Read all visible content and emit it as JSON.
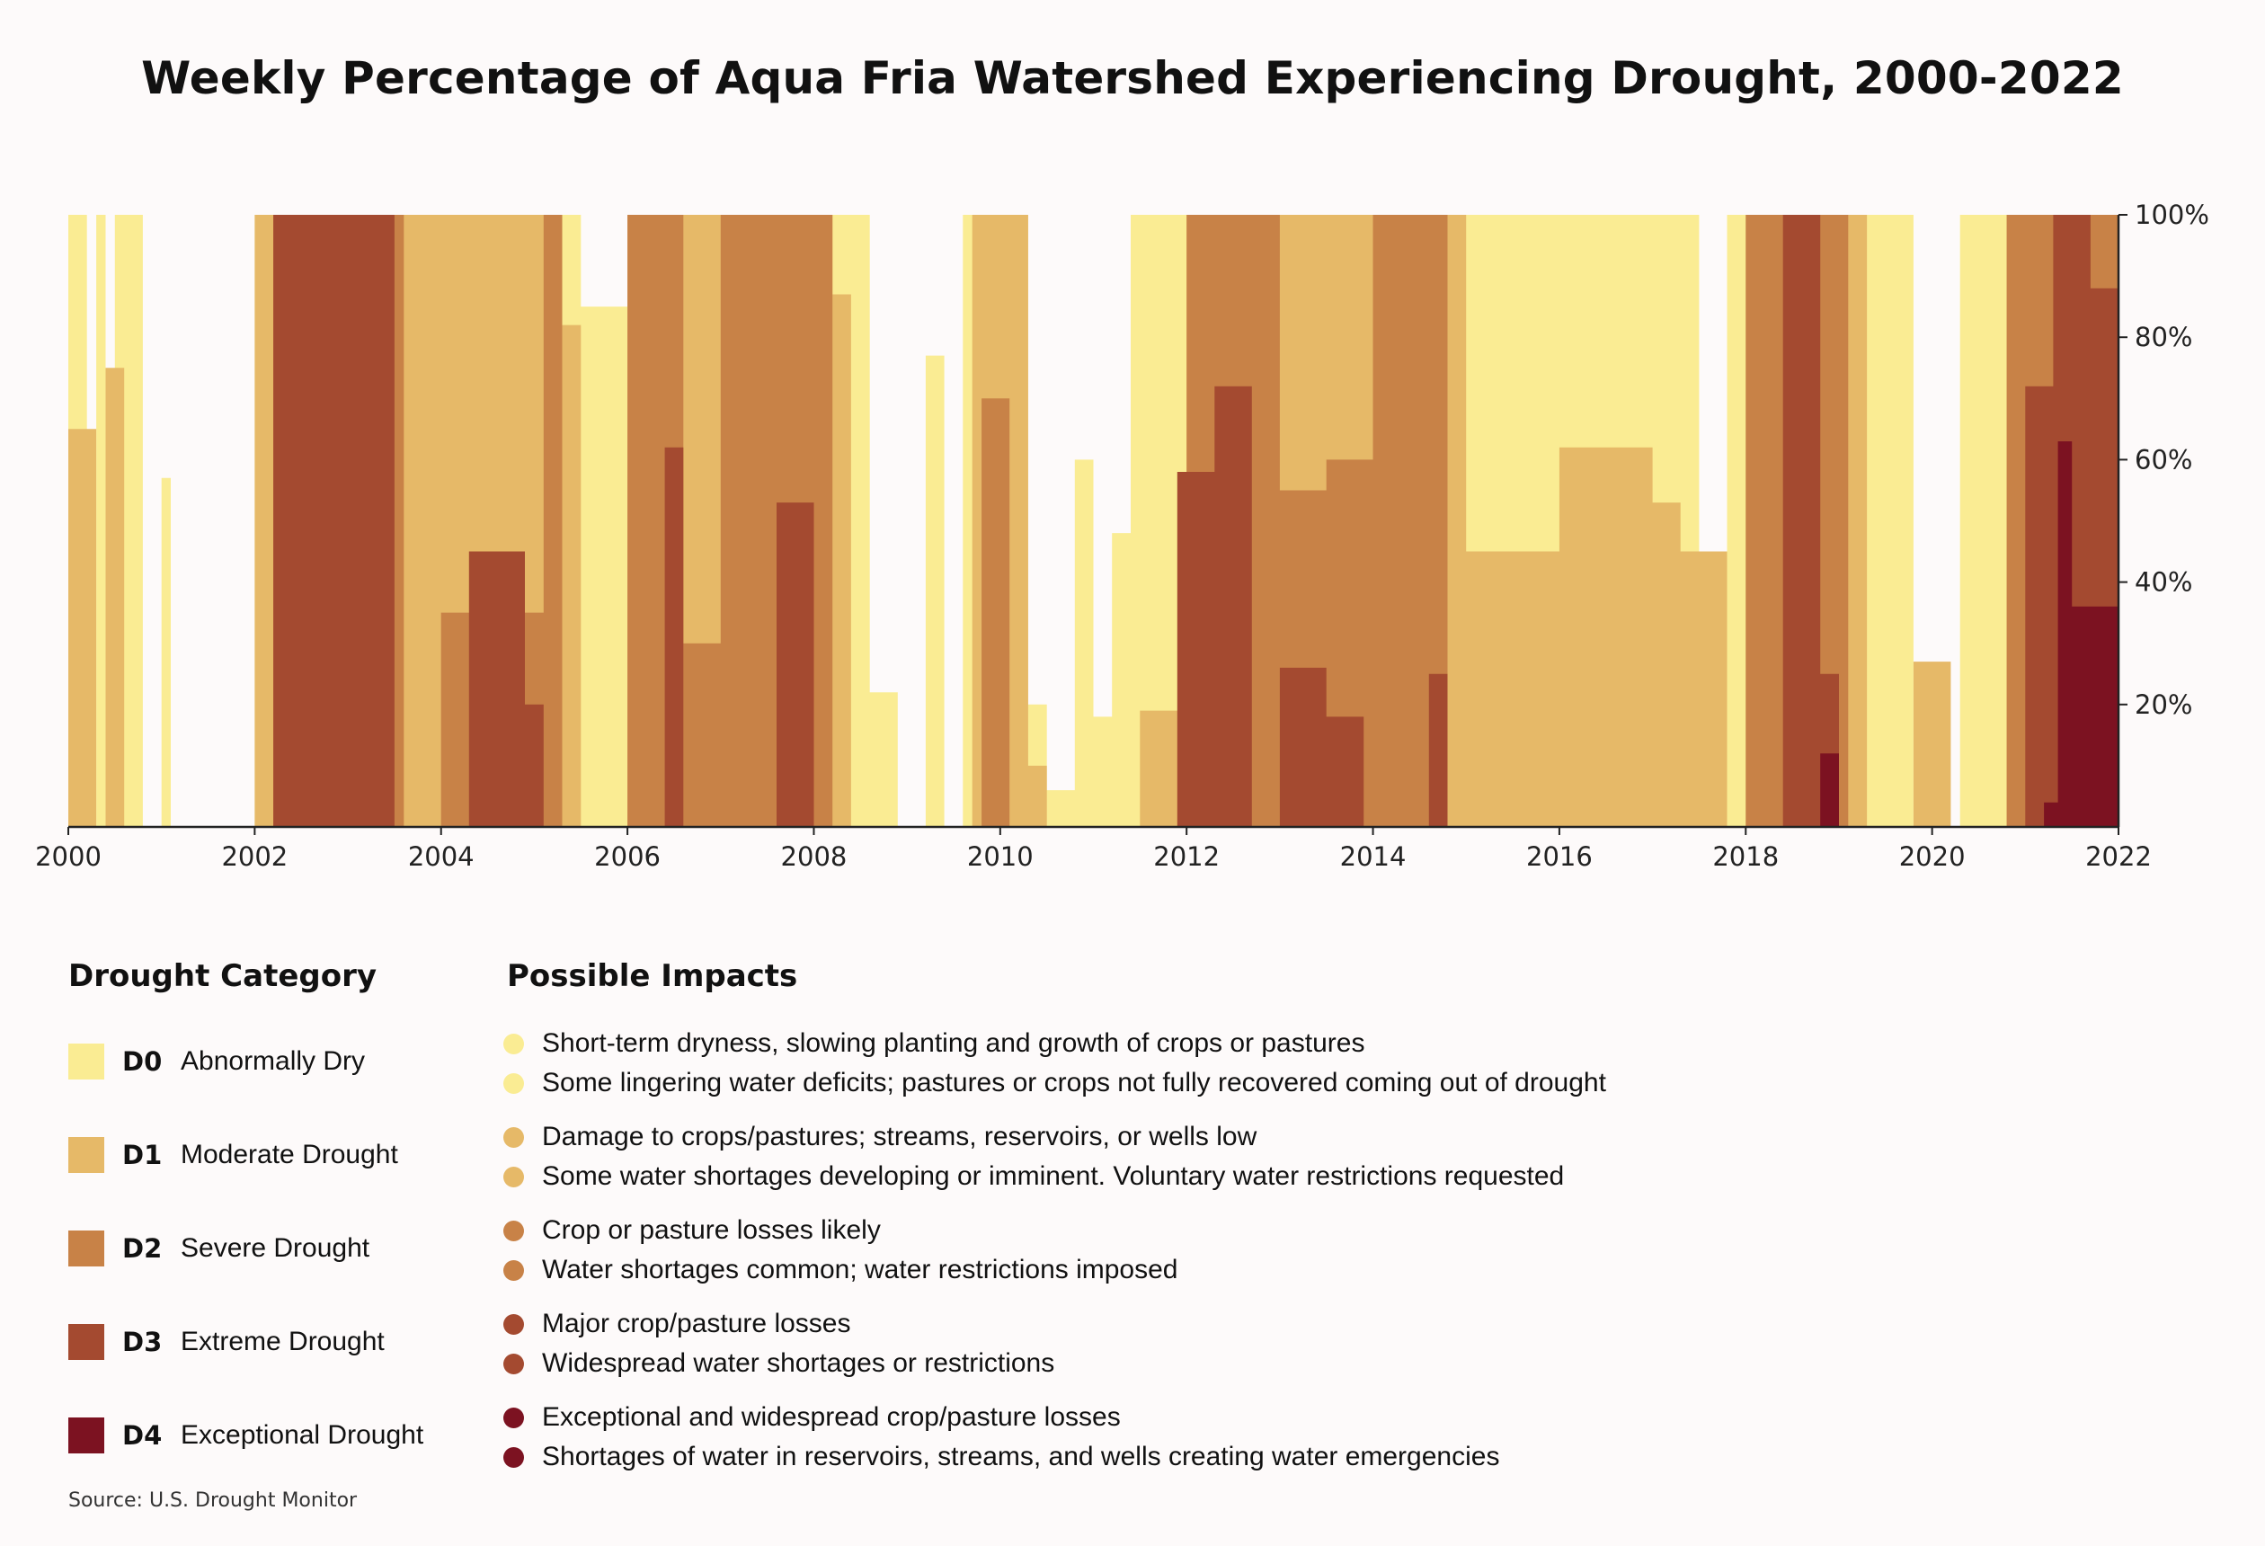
{
  "title": "Weekly Percentage of Aqua Fria Watershed Experiencing Drought, 2000-2022",
  "source": "Source: U.S. Drought Monitor",
  "legend": {
    "category_heading": "Drought Category",
    "impacts_heading": "Possible Impacts",
    "categories": [
      {
        "code": "D0",
        "name": "Abnormally Dry",
        "color": "#faec93",
        "impacts": [
          "Short-term dryness, slowing planting and growth of crops or pastures",
          "Some lingering water deficits; pastures or crops not fully recovered coming out of drought"
        ]
      },
      {
        "code": "D1",
        "name": "Moderate Drought",
        "color": "#e6b968",
        "impacts": [
          "Damage to crops/pastures; streams, reservoirs, or wells low",
          "Some water shortages developing or imminent. Voluntary water restrictions requested"
        ]
      },
      {
        "code": "D2",
        "name": "Severe Drought",
        "color": "#c88247",
        "impacts": [
          "Crop or pasture losses likely",
          "Water shortages common; water restrictions imposed"
        ]
      },
      {
        "code": "D3",
        "name": "Extreme Drought",
        "color": "#a44a30",
        "impacts": [
          "Major crop/pasture losses",
          "Widespread water shortages or restrictions"
        ]
      },
      {
        "code": "D4",
        "name": "Exceptional Drought",
        "color": "#7c1221",
        "impacts": [
          "Exceptional and widespread crop/pasture losses",
          "Shortages of water in reservoirs, streams, and wells creating water emergencies"
        ]
      }
    ]
  },
  "chart_data": {
    "type": "area",
    "title": "Weekly Percentage of Aqua Fria Watershed Experiencing Drought, 2000-2022",
    "xlabel": "",
    "ylabel": "",
    "xlim": [
      2000,
      2022
    ],
    "ylim": [
      0,
      100
    ],
    "x_ticks": [
      "2000",
      "2002",
      "2004",
      "2006",
      "2008",
      "2010",
      "2012",
      "2014",
      "2016",
      "2018",
      "2020",
      "2022"
    ],
    "y_ticks": [
      "20%",
      "40%",
      "60%",
      "80%",
      "100%"
    ],
    "y_tick_values": [
      20,
      40,
      60,
      80,
      100
    ],
    "series_note": "Cumulative percent of area at or above each category (D0-D4), step values estimated from chart",
    "series": [
      {
        "name": "D0",
        "x": [
          2000.0,
          2000.2,
          2000.3,
          2000.4,
          2000.5,
          2000.8,
          2001.0,
          2001.1,
          2002.0,
          2005.5,
          2006.0,
          2008.4,
          2008.6,
          2008.9,
          2009.2,
          2009.4,
          2009.6,
          2010.3,
          2010.5,
          2010.8,
          2011.0,
          2011.2,
          2011.4,
          2013.3,
          2014.0,
          2017.3,
          2017.5,
          2017.8,
          2018.0,
          2019.4,
          2019.8,
          2020.3,
          2020.8,
          2022.0
        ],
        "y": [
          100,
          0,
          100,
          0,
          100,
          0,
          57,
          0,
          100,
          85,
          100,
          100,
          22,
          0,
          77,
          0,
          100,
          20,
          6,
          60,
          18,
          48,
          100,
          100,
          100,
          100,
          0,
          100,
          100,
          100,
          0,
          100,
          100,
          100
        ]
      },
      {
        "name": "D1",
        "x": [
          2000.0,
          2000.3,
          2000.4,
          2000.6,
          2002.0,
          2005.2,
          2005.5,
          2006.0,
          2008.2,
          2008.4,
          2009.7,
          2010.3,
          2010.5,
          2011.5,
          2012.0,
          2013.3,
          2014.0,
          2014.8,
          2015.0,
          2016.0,
          2017.0,
          2017.3,
          2017.8,
          2018.0,
          2019.3,
          2019.8,
          2020.2,
          2020.8,
          2022.0
        ],
        "y": [
          65,
          0,
          75,
          0,
          100,
          82,
          0,
          100,
          87,
          0,
          100,
          10,
          0,
          19,
          100,
          100,
          95,
          100,
          45,
          62,
          53,
          45,
          0,
          100,
          0,
          27,
          0,
          100,
          100
        ]
      },
      {
        "name": "D2",
        "x": [
          2000.0,
          2002.2,
          2003.6,
          2004.0,
          2005.1,
          2005.3,
          2006.0,
          2006.6,
          2007.0,
          2008.2,
          2009.8,
          2010.1,
          2011.8,
          2012.0,
          2013.0,
          2013.5,
          2014.0,
          2014.8,
          2015.0,
          2018.0,
          2019.1,
          2019.3,
          2020.8,
          2022.0
        ],
        "y": [
          0,
          100,
          0,
          35,
          100,
          0,
          100,
          30,
          100,
          0,
          70,
          0,
          0,
          100,
          55,
          60,
          100,
          0,
          0,
          100,
          0,
          0,
          100,
          0
        ]
      },
      {
        "name": "D3",
        "x": [
          2000.0,
          2002.2,
          2003.0,
          2003.5,
          2004.0,
          2004.3,
          2004.9,
          2005.1,
          2006.4,
          2006.6,
          2007.6,
          2008.0,
          2011.9,
          2012.3,
          2012.7,
          2013.0,
          2013.5,
          2013.9,
          2014.6,
          2014.8,
          2018.4,
          2018.8,
          2019.0,
          2021.0,
          2021.3,
          2021.7,
          2022.0
        ],
        "y": [
          0,
          100,
          100,
          0,
          0,
          45,
          20,
          0,
          62,
          0,
          53,
          0,
          58,
          72,
          0,
          26,
          18,
          0,
          25,
          0,
          100,
          25,
          0,
          72,
          100,
          88,
          0
        ]
      },
      {
        "name": "D4",
        "x": [
          2000.0,
          2018.6,
          2018.8,
          2019.0,
          2021.0,
          2021.2,
          2021.35,
          2021.5,
          2022.0
        ],
        "y": [
          0,
          0,
          12,
          0,
          0,
          4,
          63,
          36,
          0
        ]
      }
    ]
  }
}
